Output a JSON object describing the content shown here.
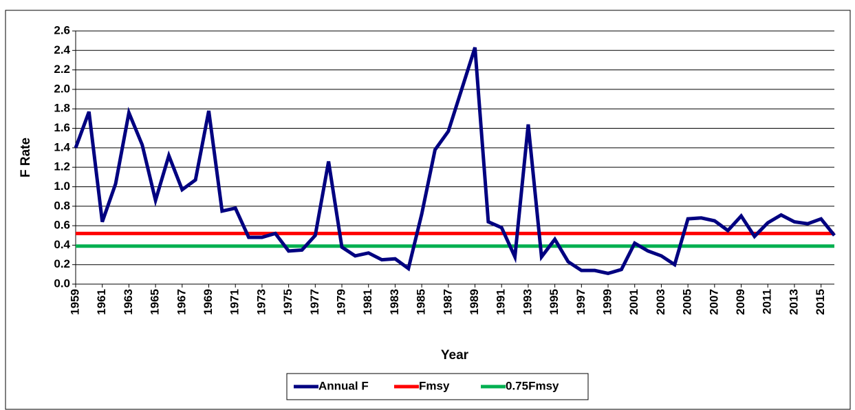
{
  "chart_data": {
    "type": "line",
    "ylabel": "F Rate",
    "xlabel": "Year",
    "x": [
      1959,
      1960,
      1961,
      1962,
      1963,
      1964,
      1965,
      1966,
      1967,
      1968,
      1969,
      1970,
      1971,
      1972,
      1973,
      1974,
      1975,
      1976,
      1977,
      1978,
      1979,
      1980,
      1981,
      1982,
      1983,
      1984,
      1985,
      1986,
      1987,
      1988,
      1989,
      1990,
      1991,
      1992,
      1993,
      1994,
      1995,
      1996,
      1997,
      1998,
      1999,
      2000,
      2001,
      2002,
      2003,
      2004,
      2005,
      2006,
      2007,
      2008,
      2009,
      2010,
      2011,
      2012,
      2013,
      2014,
      2015,
      2016
    ],
    "xlim": [
      1959,
      2016
    ],
    "xticks": [
      1959,
      1961,
      1963,
      1965,
      1967,
      1969,
      1971,
      1973,
      1975,
      1977,
      1979,
      1981,
      1983,
      1985,
      1987,
      1989,
      1991,
      1993,
      1995,
      1997,
      1999,
      2001,
      2003,
      2005,
      2007,
      2009,
      2011,
      2013,
      2015
    ],
    "ylim": [
      0,
      2.6
    ],
    "yticks": [
      {
        "value": 0,
        "label": "0.0"
      },
      {
        "value": 0.2,
        "label": "0.2"
      },
      {
        "value": 0.4,
        "label": "0.4"
      },
      {
        "value": 0.6,
        "label": "0.6"
      },
      {
        "value": 0.8,
        "label": "0.8"
      },
      {
        "value": 1,
        "label": "1.0"
      },
      {
        "value": 1.2,
        "label": "1.2"
      },
      {
        "value": 1.4,
        "label": "1.4"
      },
      {
        "value": 1.6,
        "label": "1.6"
      },
      {
        "value": 1.8,
        "label": "1.8"
      },
      {
        "value": 2,
        "label": "2.0"
      },
      {
        "value": 2.2,
        "label": "2.2"
      },
      {
        "value": 2.4,
        "label": "2.4"
      },
      {
        "value": 2.6,
        "label": "2.6"
      }
    ],
    "grid": true,
    "series": [
      {
        "name": "Annual F",
        "color": "#000080",
        "values": [
          1.4,
          1.77,
          0.64,
          1.03,
          1.76,
          1.43,
          0.86,
          1.32,
          0.97,
          1.07,
          1.78,
          0.75,
          0.78,
          0.48,
          0.48,
          0.52,
          0.34,
          0.35,
          0.5,
          1.26,
          0.38,
          0.29,
          0.32,
          0.25,
          0.26,
          0.16,
          0.72,
          1.38,
          1.57,
          2.0,
          2.43,
          0.64,
          0.58,
          0.28,
          1.64,
          0.28,
          0.46,
          0.23,
          0.14,
          0.14,
          0.11,
          0.15,
          0.42,
          0.34,
          0.29,
          0.2,
          0.67,
          0.68,
          0.65,
          0.55,
          0.7,
          0.49,
          0.63,
          0.71,
          0.64,
          0.62,
          0.67,
          0.5
        ]
      },
      {
        "name": "Fmsy",
        "color": "#ff0000",
        "x": [
          1959,
          2016
        ],
        "values": [
          0.52,
          0.52
        ]
      },
      {
        "name": "0.75Fmsy",
        "color": "#00b050",
        "x": [
          1959,
          2016
        ],
        "values": [
          0.39,
          0.39
        ]
      }
    ]
  }
}
